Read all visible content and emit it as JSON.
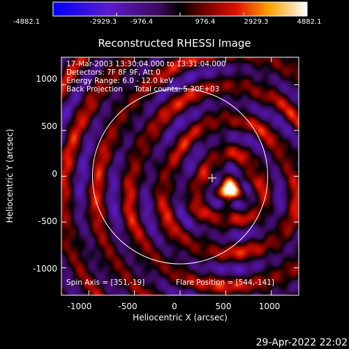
{
  "chart_data": {
    "type": "heatmap",
    "title": "Reconstructed RHESSI Image",
    "xlabel": "Heliocentric X (arcsec)",
    "ylabel": "Heliocentric Y (arcsec)",
    "xlim": [
      -1300,
      1300
    ],
    "ylim": [
      -1300,
      1300
    ],
    "xticks": [
      "-1000",
      "-500",
      "0",
      "500",
      "1000"
    ],
    "yticks": [
      "1000",
      "500",
      "0",
      "-500",
      "-1000"
    ],
    "xtick_values": [
      -1000,
      -500,
      0,
      500,
      1000
    ],
    "ytick_values": [
      1000,
      500,
      0,
      -500,
      -1000
    ],
    "colorbar": {
      "ticks": [
        "-4882.1",
        "-2929.3",
        "-976.4",
        "976.4",
        "2929.3",
        "4882.1"
      ],
      "range": [
        -4882.1,
        4882.1
      ]
    },
    "info_lines": [
      "17-Mar-2003 13:30:04.000 to 13:31:04.000",
      "Detectors: 7F 8F 9F, Att 0",
      "Energy Range: 6.0 - 12.0 keV",
      "Back Projection     Total counts: 5.30E+03"
    ],
    "spin_axis": "Spin Axis = [351,-19]",
    "flare_position": "Flare Position = [544,-141]",
    "spin_axis_center": [
      351,
      -19
    ],
    "flare_center": [
      544,
      -141
    ],
    "solar_limb_radius_arcsec": 960,
    "grid": false
  },
  "timestamp": "29-Apr-2022 22:02",
  "colors": {
    "background": "#000000",
    "text": "#ffffff",
    "limb": "#ffffff"
  }
}
